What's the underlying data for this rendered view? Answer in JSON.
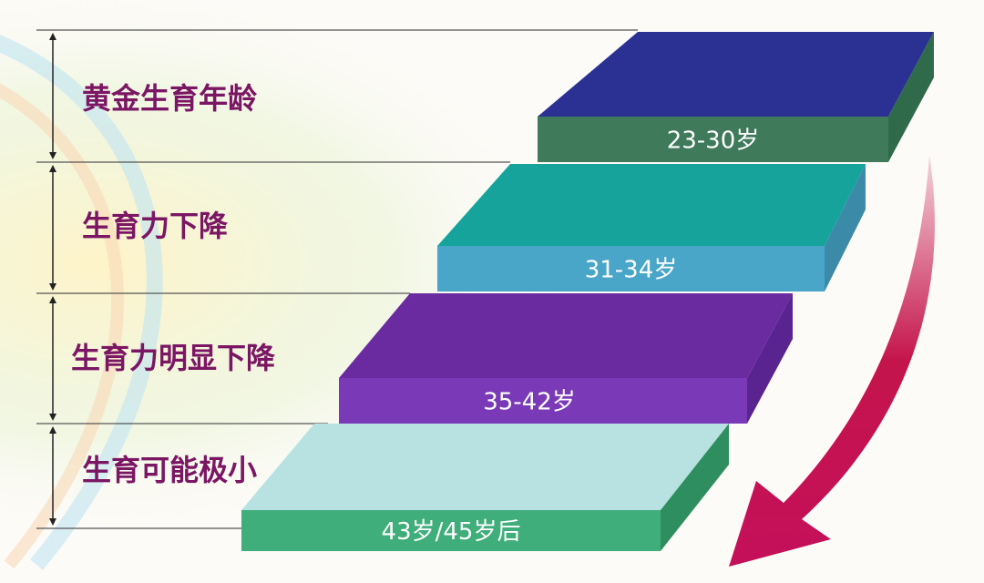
{
  "steps": [
    {
      "label": "黄金生育年龄",
      "age": "23-30岁"
    },
    {
      "label": "生育力下降",
      "age": "31-34岁"
    },
    {
      "label": "生育力明显下降",
      "age": "35-42岁"
    },
    {
      "label": "生育可能极小",
      "age": "43岁/45岁后"
    }
  ]
}
